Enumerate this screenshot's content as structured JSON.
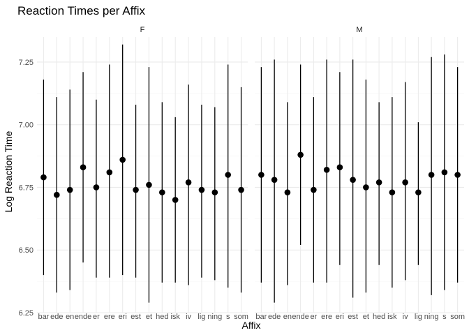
{
  "chart_data": {
    "type": "scatter",
    "title": "Reaction Times per Affix",
    "xlabel": "Affix",
    "ylabel": "Log Reaction Time",
    "ylim": [
      6.25,
      7.35
    ],
    "yticks": [
      "6.25",
      "6.50",
      "6.75",
      "7.00",
      "7.25"
    ],
    "grid": true,
    "categories": [
      "bar",
      "ede",
      "en",
      "ende",
      "er",
      "ere",
      "eri",
      "est",
      "et",
      "hed",
      "isk",
      "iv",
      "lig",
      "ning",
      "s",
      "som"
    ],
    "panels": [
      {
        "label": "F",
        "mean": [
          6.79,
          6.72,
          6.74,
          6.83,
          6.75,
          6.81,
          6.86,
          6.74,
          6.76,
          6.73,
          6.7,
          6.77,
          6.74,
          6.73,
          6.8,
          6.74
        ],
        "lower": [
          6.4,
          6.33,
          6.34,
          6.45,
          6.39,
          6.39,
          6.4,
          6.39,
          6.29,
          6.37,
          6.37,
          6.36,
          6.39,
          6.38,
          6.35,
          6.33
        ],
        "upper": [
          7.18,
          7.11,
          7.14,
          7.21,
          7.1,
          7.24,
          7.32,
          7.08,
          7.23,
          7.09,
          7.03,
          7.16,
          7.08,
          7.07,
          7.24,
          7.15
        ]
      },
      {
        "label": "M",
        "mean": [
          6.8,
          6.78,
          6.73,
          6.88,
          6.74,
          6.82,
          6.83,
          6.78,
          6.75,
          6.77,
          6.73,
          6.77,
          6.73,
          6.8,
          6.81,
          6.8
        ],
        "lower": [
          6.37,
          6.29,
          6.36,
          6.52,
          6.37,
          6.37,
          6.44,
          6.31,
          6.33,
          6.44,
          6.35,
          6.38,
          6.44,
          6.32,
          6.34,
          6.37
        ],
        "upper": [
          7.23,
          7.26,
          7.09,
          7.24,
          7.11,
          7.26,
          7.21,
          7.26,
          7.18,
          7.09,
          7.11,
          7.17,
          7.01,
          7.27,
          7.28,
          7.23
        ]
      }
    ]
  }
}
